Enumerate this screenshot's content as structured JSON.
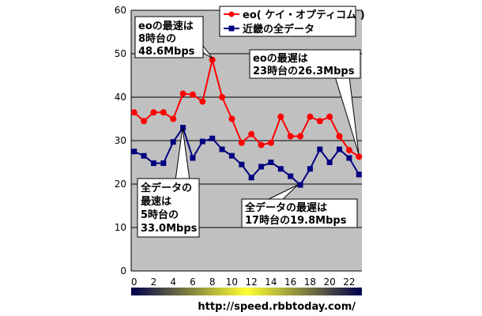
{
  "chart_data": {
    "type": "line",
    "x": [
      0,
      1,
      2,
      3,
      4,
      5,
      6,
      7,
      8,
      9,
      10,
      11,
      12,
      13,
      14,
      15,
      16,
      17,
      18,
      19,
      20,
      21,
      22,
      23
    ],
    "series": [
      {
        "name": "eo( ケイ・オプティコム )",
        "color": "#ff0000",
        "marker": "circle",
        "values": [
          36.5,
          34.5,
          36.5,
          36.5,
          35.0,
          40.8,
          40.6,
          39.0,
          48.6,
          40.0,
          35.0,
          29.5,
          31.5,
          29.0,
          29.5,
          35.5,
          31.0,
          31.0,
          35.5,
          34.5,
          35.5,
          31.0,
          27.8,
          26.3
        ]
      },
      {
        "name": "近畿の全データ",
        "color": "#000080",
        "marker": "square",
        "values": [
          27.5,
          26.5,
          24.8,
          24.8,
          29.7,
          33.0,
          26.0,
          29.8,
          30.5,
          28.0,
          26.5,
          24.5,
          21.5,
          24.0,
          25.0,
          23.5,
          21.8,
          19.8,
          23.5,
          28.0,
          25.0,
          28.0,
          26.0,
          22.2
        ]
      }
    ],
    "xticks": [
      "0",
      "2",
      "4",
      "6",
      "8",
      "10",
      "12",
      "14",
      "16",
      "18",
      "20",
      "22"
    ],
    "yticks": [
      "0",
      "10",
      "20",
      "30",
      "40",
      "50",
      "60"
    ],
    "ylim": [
      0,
      60
    ],
    "xlim": [
      -0.3,
      23.3
    ],
    "grid": true,
    "legend_position": "top-right",
    "title": "",
    "xlabel": "",
    "ylabel": ""
  },
  "callouts": {
    "eo_fastest": [
      "eoの最速は",
      "8時台の",
      "48.6Mbps"
    ],
    "eo_slowest": [
      "eoの最遅は",
      "23時台の26.3Mbps"
    ],
    "all_fastest": [
      "全データの",
      "最速は",
      "5時台の",
      "33.0Mbps"
    ],
    "all_slowest": [
      "全データの最遅は",
      "17時台の19.8Mbps"
    ]
  },
  "footer": {
    "url": "http://speed.rbbtoday.com/"
  },
  "colors": {
    "plot_background": "#c0c0c0",
    "series_eo": "#ff0000",
    "series_all": "#000080",
    "gradient_bar": [
      "#000066",
      "#ffff00",
      "#000066"
    ]
  }
}
